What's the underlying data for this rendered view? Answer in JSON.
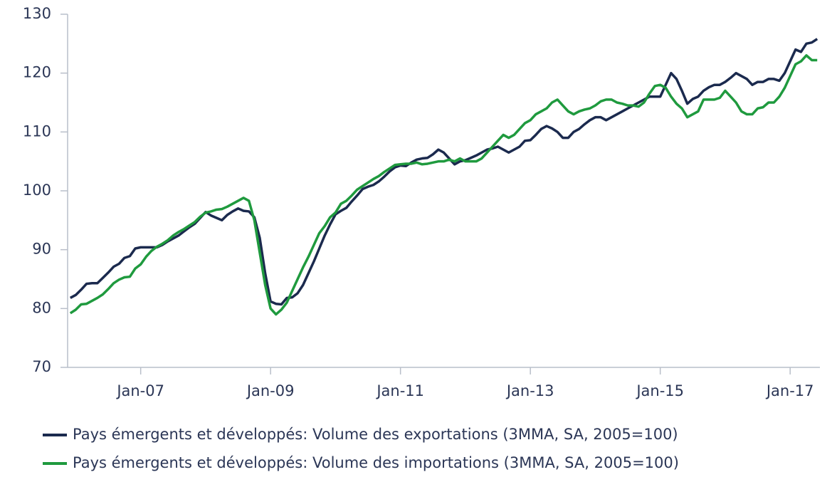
{
  "chart_data": {
    "type": "line",
    "categories": [
      null,
      null,
      null,
      null,
      null,
      null,
      null,
      null,
      null,
      null,
      null,
      null,
      null,
      "Jan-07",
      null,
      null,
      null,
      null,
      null,
      null,
      null,
      null,
      null,
      null,
      null,
      null,
      null,
      null,
      null,
      null,
      null,
      null,
      null,
      null,
      null,
      null,
      null,
      "Jan-09",
      null,
      null,
      null,
      null,
      null,
      null,
      null,
      null,
      null,
      null,
      null,
      null,
      null,
      null,
      null,
      null,
      null,
      null,
      null,
      null,
      null,
      null,
      null,
      "Jan-11",
      null,
      null,
      null,
      null,
      null,
      null,
      null,
      null,
      null,
      null,
      null,
      null,
      null,
      null,
      null,
      null,
      null,
      null,
      null,
      null,
      null,
      null,
      null,
      "Jan-13",
      null,
      null,
      null,
      null,
      null,
      null,
      null,
      null,
      null,
      null,
      null,
      null,
      null,
      null,
      null,
      null,
      null,
      null,
      null,
      null,
      null,
      null,
      null,
      "Jan-15",
      null,
      null,
      null,
      null,
      null,
      null,
      null,
      null,
      null,
      null,
      null,
      null,
      null,
      null,
      null,
      null,
      null,
      null,
      null,
      null,
      null,
      null,
      null,
      "Jan-17",
      null,
      null,
      null,
      null,
      null
    ],
    "series": [
      {
        "name": "Pays émergents et développés: Volume des exportations (3MMA, SA, 2005=100)",
        "color": "#1b2a4e",
        "values": [
          81.8,
          82.3,
          83.2,
          84.2,
          84.3,
          84.3,
          85.2,
          86.1,
          87.1,
          87.6,
          88.6,
          88.9,
          90.2,
          90.4,
          90.4,
          90.4,
          90.4,
          90.8,
          91.4,
          91.9,
          92.4,
          93.1,
          93.8,
          94.4,
          95.4,
          96.4,
          95.8,
          95.4,
          95.0,
          95.9,
          96.5,
          97.0,
          96.6,
          96.5,
          95.5,
          92.0,
          86.0,
          81.2,
          80.8,
          80.7,
          81.8,
          81.9,
          82.6,
          84.0,
          86.0,
          88.0,
          90.2,
          92.4,
          94.3,
          96.0,
          96.6,
          97.1,
          98.2,
          99.2,
          100.3,
          100.7,
          101.0,
          101.6,
          102.4,
          103.3,
          104.0,
          104.3,
          104.2,
          104.8,
          105.3,
          105.5,
          105.6,
          106.2,
          107.0,
          106.5,
          105.5,
          104.5,
          105.0,
          105.2,
          105.6,
          106.0,
          106.5,
          107.0,
          107.2,
          107.5,
          107.0,
          106.5,
          107.0,
          107.5,
          108.5,
          108.6,
          109.5,
          110.5,
          111.0,
          110.6,
          110.0,
          109.0,
          109.0,
          110.0,
          110.5,
          111.3,
          112.0,
          112.5,
          112.5,
          112.0,
          112.5,
          113.0,
          113.5,
          114.0,
          114.5,
          115.0,
          115.5,
          116.0,
          116.0,
          116.0,
          118.0,
          120.0,
          119.0,
          117.0,
          114.8,
          115.6,
          116.0,
          117.0,
          117.6,
          118.0,
          118.0,
          118.5,
          119.2,
          120.0,
          119.5,
          119.0,
          118.0,
          118.5,
          118.5,
          119.0,
          119.0,
          118.7,
          120.0,
          122.0,
          124.0,
          123.6,
          125.0,
          125.2,
          125.8
        ]
      },
      {
        "name": "Pays émergents et développés: Volume des importations (3MMA, SA, 2005=100)",
        "color": "#1f9a3e",
        "values": [
          79.2,
          79.8,
          80.7,
          80.8,
          81.3,
          81.8,
          82.4,
          83.3,
          84.3,
          84.9,
          85.3,
          85.4,
          86.8,
          87.5,
          88.8,
          89.8,
          90.5,
          91.0,
          91.6,
          92.4,
          93.0,
          93.5,
          94.1,
          94.7,
          95.6,
          96.3,
          96.5,
          96.8,
          96.9,
          97.3,
          97.8,
          98.3,
          98.8,
          98.3,
          95.0,
          89.5,
          84.0,
          80.0,
          79.0,
          79.8,
          81.0,
          83.0,
          85.0,
          87.0,
          88.8,
          90.8,
          92.8,
          94.0,
          95.5,
          96.3,
          97.8,
          98.3,
          99.2,
          100.2,
          100.8,
          101.4,
          102.0,
          102.5,
          103.2,
          103.8,
          104.4,
          104.5,
          104.6,
          104.6,
          104.8,
          104.5,
          104.6,
          104.8,
          105.0,
          105.0,
          105.3,
          105.0,
          105.5,
          105.0,
          105.0,
          105.0,
          105.5,
          106.5,
          107.5,
          108.5,
          109.5,
          109.0,
          109.5,
          110.5,
          111.5,
          112.0,
          113.0,
          113.5,
          114.0,
          115.0,
          115.5,
          114.5,
          113.5,
          113.0,
          113.5,
          113.8,
          114.0,
          114.5,
          115.2,
          115.5,
          115.5,
          115.0,
          114.8,
          114.5,
          114.5,
          114.3,
          115.0,
          116.5,
          117.8,
          118.0,
          117.5,
          116.0,
          114.8,
          114.0,
          112.5,
          113.0,
          113.5,
          115.5,
          115.5,
          115.5,
          115.8,
          117.0,
          116.0,
          115.0,
          113.5,
          113.0,
          113.0,
          114.0,
          114.2,
          115.0,
          115.0,
          116.0,
          117.5,
          119.5,
          121.5,
          122.0,
          123.0,
          122.2,
          122.2
        ]
      }
    ],
    "ylim": [
      70,
      130
    ],
    "yticks": [
      70,
      80,
      90,
      100,
      110,
      120,
      130
    ],
    "grid": false,
    "legend": "bottom"
  }
}
